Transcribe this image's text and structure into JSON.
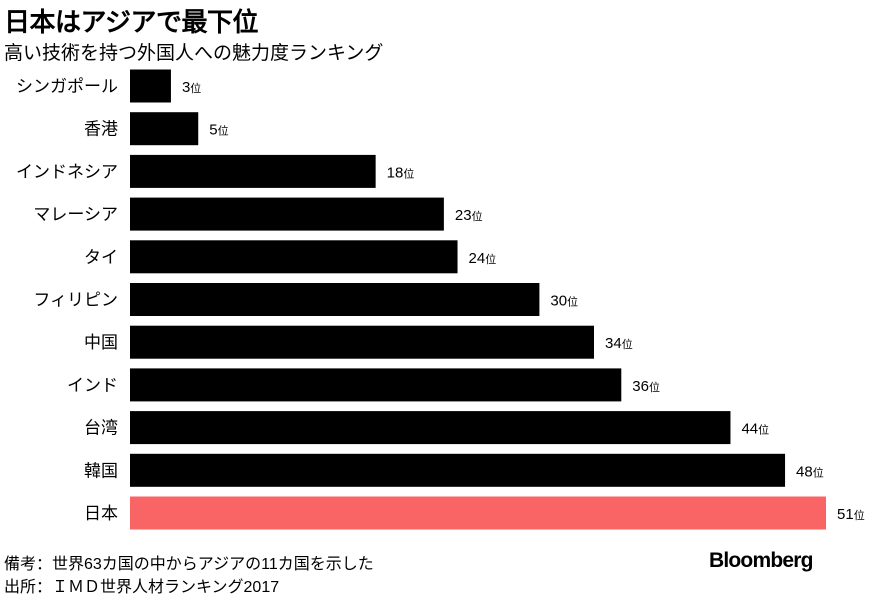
{
  "chart_data": {
    "type": "bar",
    "orientation": "horizontal",
    "title": "日本はアジアで最下位",
    "subtitle": "高い技術を持つ外国人への魅力度ランキング",
    "categories": [
      "シンガポール",
      "香港",
      "インドネシア",
      "マレーシア",
      "タイ",
      "フィリピン",
      "中国",
      "インド",
      "台湾",
      "韓国",
      "日本"
    ],
    "values": [
      3,
      5,
      18,
      23,
      24,
      30,
      34,
      36,
      44,
      48,
      51
    ],
    "value_suffix": "位",
    "xlim": [
      0,
      51
    ],
    "grid": false,
    "colors": {
      "default": "#000000",
      "highlight": "#f96464"
    },
    "highlight_category": "日本",
    "xlabel": "",
    "ylabel": ""
  },
  "footer": {
    "note": "備考：世界63カ国の中からアジアの11カ国を示した",
    "source": "出所：ＩＭＤ世界人材ランキング2017",
    "logo": "Bloomberg"
  }
}
